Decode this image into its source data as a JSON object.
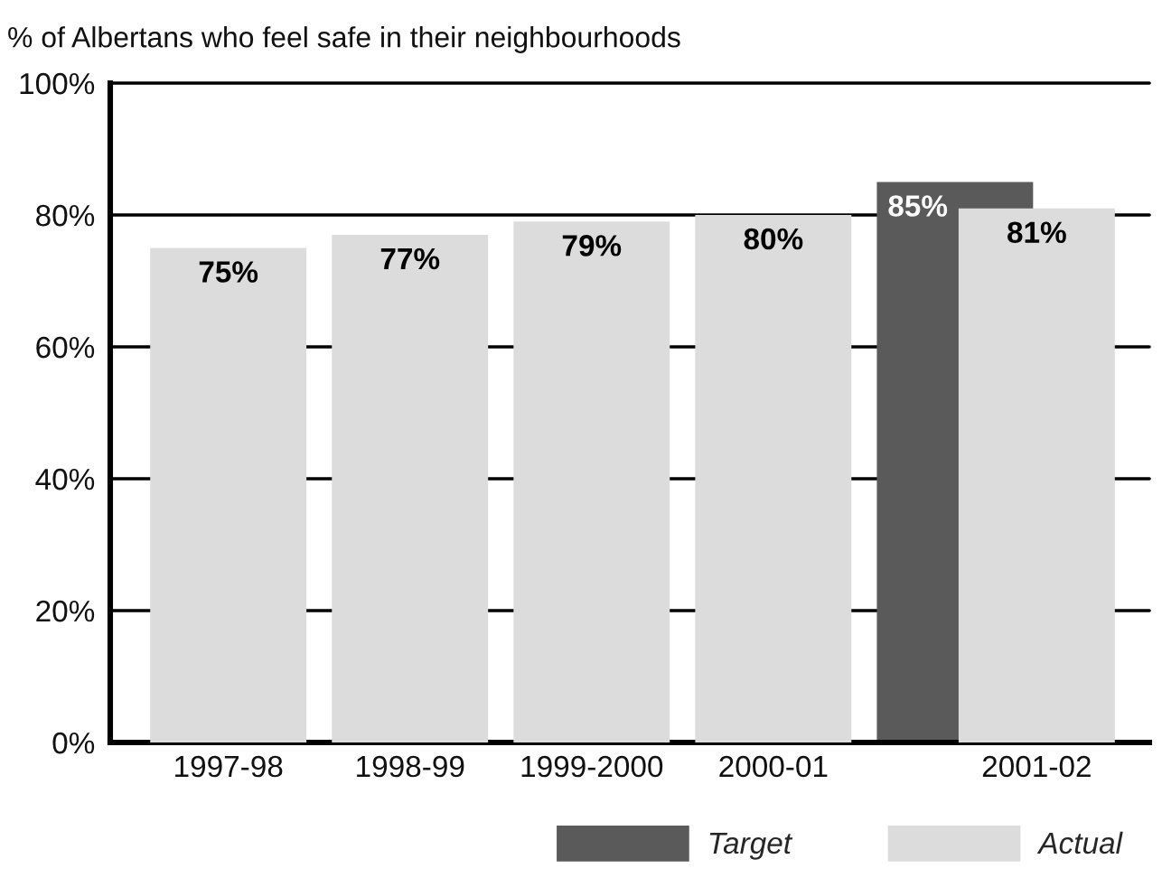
{
  "chart_data": {
    "type": "bar",
    "title": "% of Albertans who feel safe in their neighbourhoods",
    "categories": [
      "1997-98",
      "1998-99",
      "1999-2000",
      "2000-01",
      "2001-02"
    ],
    "series": [
      {
        "name": "Target",
        "color": "#5a5a5a",
        "values": [
          null,
          null,
          null,
          null,
          85
        ],
        "value_labels": [
          null,
          null,
          null,
          null,
          "85%"
        ]
      },
      {
        "name": "Actual",
        "color": "#dcdcdc",
        "values": [
          75,
          77,
          79,
          80,
          81
        ],
        "value_labels": [
          "75%",
          "77%",
          "79%",
          "80%",
          "81%"
        ]
      }
    ],
    "ylim": [
      0,
      100
    ],
    "yticks": [
      {
        "value": 0,
        "label": "0%"
      },
      {
        "value": 20,
        "label": "20%"
      },
      {
        "value": 40,
        "label": "40%"
      },
      {
        "value": 60,
        "label": "60%"
      },
      {
        "value": 80,
        "label": "80%"
      },
      {
        "value": 100,
        "label": "100%"
      }
    ],
    "grid": "y",
    "legend": "bottom right"
  }
}
